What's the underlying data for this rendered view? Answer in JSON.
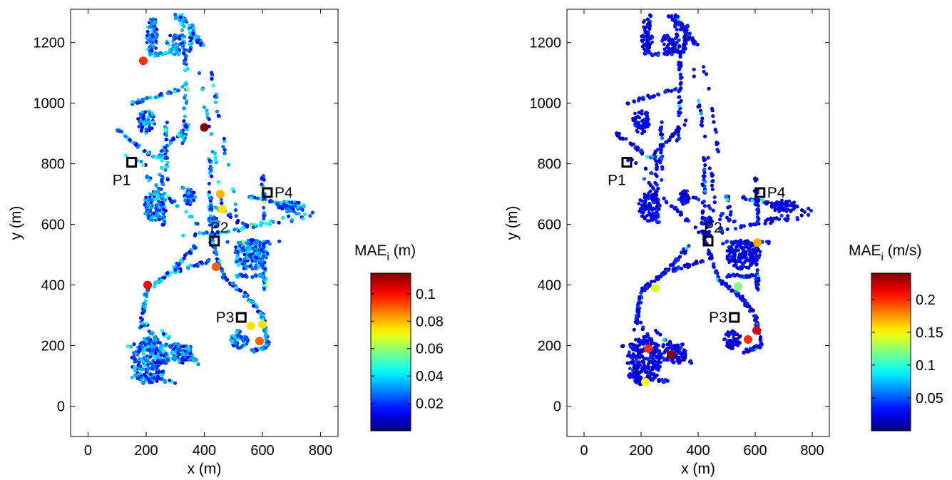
{
  "chart_data": [
    {
      "type": "scatter",
      "title": "",
      "xlabel": "x (m)",
      "ylabel": "y (m)",
      "xlim": [
        -60,
        860
      ],
      "ylim": [
        -100,
        1310
      ],
      "xticks": [
        0,
        200,
        400,
        600,
        800
      ],
      "yticks": [
        0,
        200,
        400,
        600,
        800,
        1000,
        1200
      ],
      "colorbar": {
        "label": "MAE",
        "label_sub": "i",
        "label_unit": "(m)",
        "min": 0.0,
        "max": 0.115,
        "ticks": [
          0.02,
          0.04,
          0.06,
          0.08,
          0.1
        ],
        "colormap": "jet"
      },
      "markers": [
        {
          "name": "P1",
          "x": 150,
          "y": 805
        },
        {
          "name": "P2",
          "x": 435,
          "y": 545
        },
        {
          "name": "P3",
          "x": 527,
          "y": 293
        },
        {
          "name": "P4",
          "x": 617,
          "y": 705
        }
      ],
      "highlights": [
        {
          "x": 190,
          "y": 1140,
          "v": 0.095
        },
        {
          "x": 400,
          "y": 920,
          "v": 0.115
        },
        {
          "x": 205,
          "y": 400,
          "v": 0.1
        },
        {
          "x": 440,
          "y": 460,
          "v": 0.09
        },
        {
          "x": 455,
          "y": 700,
          "v": 0.08
        },
        {
          "x": 590,
          "y": 215,
          "v": 0.09
        },
        {
          "x": 560,
          "y": 265,
          "v": 0.075
        },
        {
          "x": 600,
          "y": 270,
          "v": 0.075
        },
        {
          "x": 460,
          "y": 650,
          "v": 0.075
        }
      ]
    },
    {
      "type": "scatter",
      "title": "",
      "xlabel": "x (m)",
      "ylabel": "y (m)",
      "xlim": [
        -60,
        860
      ],
      "ylim": [
        -100,
        1310
      ],
      "xticks": [
        0,
        200,
        400,
        600,
        800
      ],
      "yticks": [
        0,
        200,
        400,
        600,
        800,
        1000,
        1200
      ],
      "colorbar": {
        "label": "MAE",
        "label_sub": "i",
        "label_unit": "(m/s)",
        "min": 0.0,
        "max": 0.24,
        "ticks": [
          0.05,
          0.1,
          0.15,
          0.2
        ],
        "colormap": "jet"
      },
      "markers": [
        {
          "name": "P1",
          "x": 150,
          "y": 805
        },
        {
          "name": "P2",
          "x": 435,
          "y": 545
        },
        {
          "name": "P3",
          "x": 527,
          "y": 293
        },
        {
          "name": "P4",
          "x": 617,
          "y": 705
        }
      ],
      "highlights": [
        {
          "x": 305,
          "y": 170,
          "v": 0.24
        },
        {
          "x": 225,
          "y": 190,
          "v": 0.2
        },
        {
          "x": 605,
          "y": 250,
          "v": 0.22
        },
        {
          "x": 575,
          "y": 220,
          "v": 0.2
        },
        {
          "x": 215,
          "y": 80,
          "v": 0.15
        },
        {
          "x": 608,
          "y": 540,
          "v": 0.17
        },
        {
          "x": 250,
          "y": 390,
          "v": 0.14
        },
        {
          "x": 540,
          "y": 395,
          "v": 0.12
        }
      ]
    }
  ]
}
